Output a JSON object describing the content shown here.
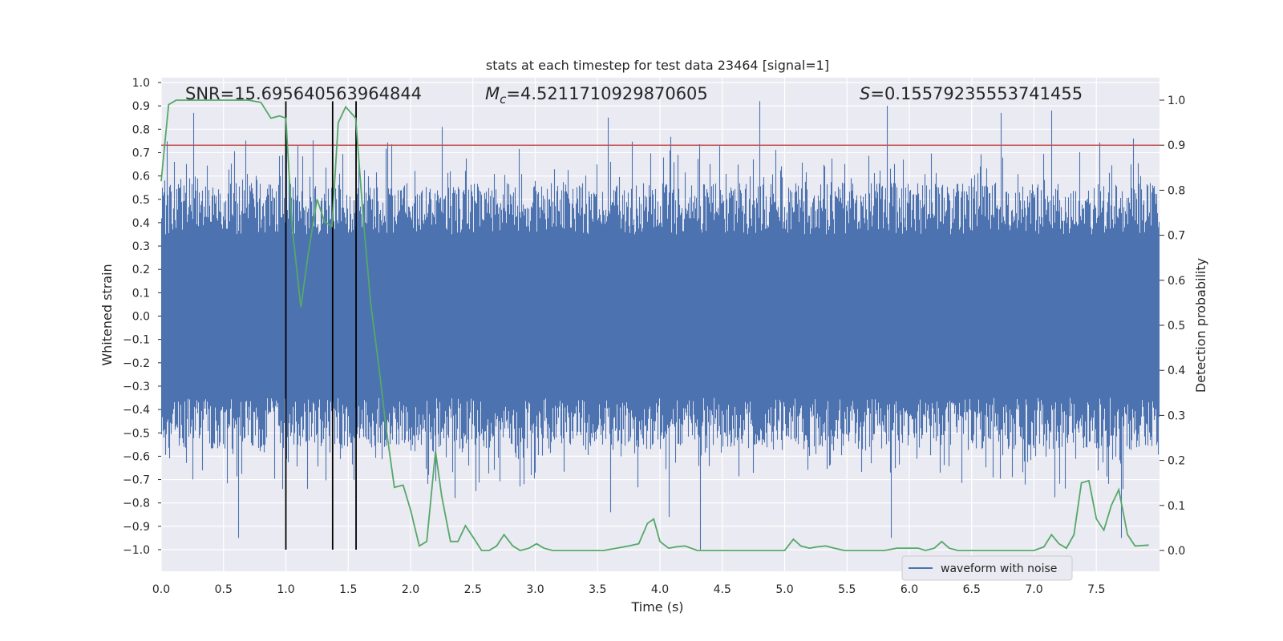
{
  "chart_data": {
    "type": "line",
    "title": "stats at each timestep for test data 23464 [signal=1]",
    "xlabel": "Time (s)",
    "ylabel": "Whitened strain",
    "y2label": "Detection probability",
    "xlim": [
      0.0,
      8.0
    ],
    "ylim": [
      -1.05,
      1.05
    ],
    "y2lim": [
      -0.05,
      1.04
    ],
    "xticks": [
      "0.0",
      "0.5",
      "1.0",
      "1.5",
      "2.0",
      "2.5",
      "3.0",
      "3.5",
      "4.0",
      "4.5",
      "5.0",
      "5.5",
      "6.0",
      "6.5",
      "7.0",
      "7.5"
    ],
    "yticks": [
      "1.0",
      "0.9",
      "0.8",
      "0.7",
      "0.6",
      "0.5",
      "0.4",
      "0.3",
      "0.2",
      "0.1",
      "0.0",
      "−0.1",
      "−0.2",
      "−0.3",
      "−0.4",
      "−0.5",
      "−0.6",
      "−0.7",
      "−0.8",
      "−0.9",
      "−1.0"
    ],
    "y2ticks": [
      "1.0",
      "0.9",
      "0.8",
      "0.7",
      "0.6",
      "0.5",
      "0.4",
      "0.3",
      "0.2",
      "0.1",
      "0.0"
    ],
    "grid": true,
    "legend_position": "lower-right",
    "annotations": {
      "snr": "SNR=15.695640563964844",
      "mc_symbol": "M",
      "mc_subscript": "c",
      "mc_value": "=4.5211710929870605",
      "s_symbol": "S",
      "s_value": "=0.15579235553741455"
    },
    "threshold": 0.9,
    "vlines": [
      1.0,
      1.375,
      1.563
    ],
    "series": [
      {
        "name": "waveform with noise",
        "axis": "left",
        "color": "#4c72b0",
        "style": "dense noise, typical envelope ±0.45 with peaks up to about ±0.95",
        "peaks": [
          [
            0.26,
            0.87
          ],
          [
            0.62,
            -0.95
          ],
          [
            0.97,
            -0.74
          ],
          [
            1.0,
            0.82
          ],
          [
            2.25,
            0.81
          ],
          [
            3.58,
            0.85
          ],
          [
            3.6,
            -0.84
          ],
          [
            4.07,
            -0.86
          ],
          [
            4.32,
            -1.0
          ],
          [
            4.8,
            0.92
          ],
          [
            5.82,
            0.9
          ],
          [
            5.85,
            -0.95
          ],
          [
            6.73,
            0.87
          ],
          [
            7.14,
            0.88
          ],
          [
            7.7,
            -0.95
          ]
        ]
      },
      {
        "name": "detection probability",
        "axis": "right",
        "color": "#55a868",
        "x": [
          0.0,
          0.06,
          0.12,
          0.2,
          0.3,
          0.4,
          0.5,
          0.6,
          0.7,
          0.8,
          0.88,
          0.95,
          1.0,
          1.05,
          1.12,
          1.18,
          1.25,
          1.31,
          1.37,
          1.42,
          1.48,
          1.56,
          1.62,
          1.68,
          1.75,
          1.8,
          1.87,
          1.94,
          2.0,
          2.07,
          2.13,
          2.2,
          2.25,
          2.32,
          2.38,
          2.44,
          2.5,
          2.57,
          2.63,
          2.69,
          2.75,
          2.82,
          2.88,
          2.95,
          3.01,
          3.07,
          3.14,
          3.3,
          3.45,
          3.55,
          3.65,
          3.75,
          3.83,
          3.9,
          3.95,
          4.0,
          4.07,
          4.13,
          4.2,
          4.3,
          4.45,
          4.6,
          4.8,
          5.0,
          5.07,
          5.13,
          5.2,
          5.26,
          5.33,
          5.4,
          5.48,
          5.6,
          5.7,
          5.8,
          5.9,
          6.0,
          6.07,
          6.13,
          6.2,
          6.26,
          6.32,
          6.39,
          6.45,
          6.6,
          6.75,
          6.9,
          7.0,
          7.08,
          7.14,
          7.2,
          7.26,
          7.32,
          7.38,
          7.44,
          7.5,
          7.56,
          7.62,
          7.68,
          7.75,
          7.81,
          7.92
        ],
        "y": [
          0.82,
          0.99,
          1.0,
          1.0,
          1.0,
          1.0,
          1.0,
          1.0,
          1.0,
          0.995,
          0.96,
          0.965,
          0.96,
          0.72,
          0.54,
          0.66,
          0.78,
          0.73,
          0.72,
          0.95,
          0.985,
          0.96,
          0.74,
          0.55,
          0.4,
          0.28,
          0.14,
          0.145,
          0.09,
          0.01,
          0.02,
          0.22,
          0.12,
          0.02,
          0.02,
          0.055,
          0.03,
          0.0,
          0.0,
          0.01,
          0.035,
          0.01,
          0.0,
          0.005,
          0.015,
          0.005,
          0.0,
          0.0,
          0.0,
          0.0,
          0.005,
          0.01,
          0.015,
          0.06,
          0.07,
          0.02,
          0.005,
          0.008,
          0.01,
          0.0,
          0.0,
          0.0,
          0.0,
          0.0,
          0.025,
          0.01,
          0.005,
          0.008,
          0.01,
          0.005,
          0.0,
          0.0,
          0.0,
          0.0,
          0.005,
          0.005,
          0.005,
          0.0,
          0.005,
          0.02,
          0.005,
          0.0,
          0.0,
          0.0,
          0.0,
          0.0,
          0.0,
          0.008,
          0.035,
          0.015,
          0.005,
          0.035,
          0.15,
          0.155,
          0.07,
          0.045,
          0.1,
          0.135,
          0.035,
          0.01,
          0.012
        ]
      }
    ]
  },
  "colors": {
    "background": "#eaeaf2",
    "grid": "#ffffff",
    "waveform": "#4c72b0",
    "probability": "#55a868",
    "threshold": "#c44e52",
    "vlines": "#000000"
  }
}
